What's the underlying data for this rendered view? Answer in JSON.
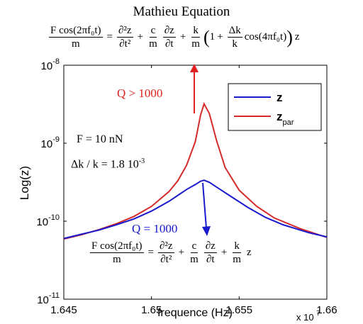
{
  "title": "Mathieu Equation",
  "equations": {
    "mathieu": {
      "lhs_num": "F cos(2πf₀t)",
      "lhs_den": "m",
      "t1_num": "∂²z",
      "t1_den": "∂t²",
      "t2a_num": "c",
      "t2a_den": "m",
      "t2b_num": "∂z",
      "t2b_den": "∂t",
      "t3_num": "k",
      "t3_den": "m",
      "paren_open": "(",
      "one": "1",
      "t4_num": "Δk",
      "t4_den": "k",
      "cos_term": "cos(4πf₀t)",
      "paren_close": ")",
      "tail": "z",
      "eq": "=",
      "plus": "+"
    },
    "linear": {
      "lhs_num": "F cos(2πf₀t)",
      "lhs_den": "m",
      "t1_num": "∂²z",
      "t1_den": "∂t²",
      "t2a_num": "c",
      "t2a_den": "m",
      "t2b_num": "∂z",
      "t2b_den": "∂t",
      "t3_num": "k",
      "t3_den": "m",
      "tail": "z",
      "eq": "=",
      "plus": "+"
    }
  },
  "annotations": {
    "q_high": "Q > 1000",
    "q_low": "Q = 1000",
    "force": "F = 10 nN",
    "dk_main": "Δk / k = 1.8 10",
    "dk_exp": "-3",
    "q_high_color": "#e02020",
    "q_low_color": "#1a1acc"
  },
  "chart_data": {
    "type": "line",
    "title": "",
    "xlabel": "frequence (Hz)",
    "ylabel": "Log(z)",
    "x_multiplier": "x 10",
    "x_multiplier_exp": "7",
    "xlim": [
      1.645,
      1.66
    ],
    "ylim_exponents": [
      -11,
      -8
    ],
    "yscale": "log",
    "grid": false,
    "legend_position": "top-right",
    "x_ticks": [
      "1.645",
      "1.65",
      "1.655",
      "1.66"
    ],
    "x_tick_values": [
      1.645,
      1.65,
      1.655,
      1.66
    ],
    "y_ticks": [
      {
        "base": "10",
        "exp": "-11",
        "value": -11
      },
      {
        "base": "10",
        "exp": "-10",
        "value": -10
      },
      {
        "base": "10",
        "exp": "-9",
        "value": -9
      },
      {
        "base": "10",
        "exp": "-8",
        "value": -8
      }
    ],
    "series": [
      {
        "name": "z",
        "color": "#1a1acc",
        "x": [
          1.645,
          1.646,
          1.647,
          1.648,
          1.649,
          1.65,
          1.651,
          1.652,
          1.6525,
          1.6528,
          1.653,
          1.6533,
          1.6537,
          1.6545,
          1.6555,
          1.6565,
          1.6575,
          1.659,
          1.66
        ],
        "y": [
          6e-11,
          6.8e-11,
          7.7e-11,
          9e-11,
          1.07e-10,
          1.35e-10,
          1.8e-10,
          2.55e-10,
          2.95e-10,
          3.25e-10,
          3.35e-10,
          3.15e-10,
          2.75e-10,
          2.1e-10,
          1.5e-10,
          1.12e-10,
          9e-11,
          7.1e-11,
          6.3e-11
        ]
      },
      {
        "name": "z_par",
        "legend_sub": "par",
        "color": "#d42a2a",
        "x": [
          1.645,
          1.646,
          1.647,
          1.648,
          1.649,
          1.65,
          1.651,
          1.6515,
          1.652,
          1.6525,
          1.6528,
          1.653,
          1.6533,
          1.6537,
          1.6542,
          1.655,
          1.656,
          1.657,
          1.6585,
          1.66
        ],
        "y": [
          5.9e-11,
          6.7e-11,
          7.8e-11,
          9.3e-11,
          1.15e-10,
          1.55e-10,
          2.4e-10,
          3.3e-10,
          5.2e-10,
          1.05e-09,
          2.3e-09,
          3.2e-09,
          2.4e-09,
          1.1e-09,
          4.9e-10,
          2.5e-10,
          1.55e-10,
          1.1e-10,
          8e-11,
          6.2e-11
        ]
      }
    ]
  }
}
